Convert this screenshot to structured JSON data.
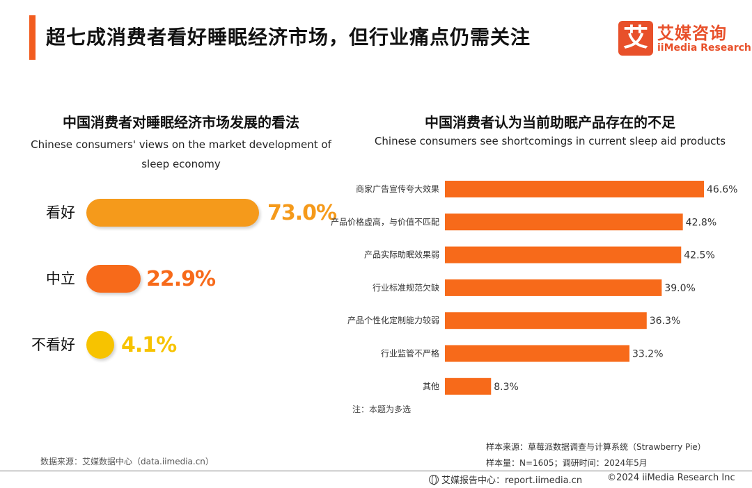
{
  "header": {
    "title": "超七成消费者看好睡眠经济市场，但行业痛点仍需关注",
    "logo_mark": "艾",
    "logo_cn": "艾媒咨询",
    "logo_en": "iiMedia Research",
    "accent_color": "#f25c1f"
  },
  "left_panel": {
    "title": "中国消费者对睡眠经济市场发展的看法",
    "subtitle_line1": "Chinese consumers' views on the market development of",
    "subtitle_line2": "sleep economy"
  },
  "right_panel": {
    "title": "中国消费者认为当前助眠产品存在的不足",
    "subtitle": "Chinese consumers see shortcomings in current sleep aid products",
    "note": "注：本题为多选"
  },
  "chart_data": [
    {
      "type": "bar",
      "orientation": "horizontal",
      "title": "中国消费者对睡眠经济市场发展的看法",
      "subtitle": "Chinese consumers' views on the market development of sleep economy",
      "categories": [
        "看好",
        "中立",
        "不看好"
      ],
      "values": [
        73.0,
        22.9,
        4.1
      ],
      "value_labels": [
        "73.0%",
        "22.9%",
        "4.1%"
      ],
      "colors": [
        "#f59a1b",
        "#f76a1a",
        "#f7c300"
      ],
      "unit": "%"
    },
    {
      "type": "bar",
      "orientation": "horizontal",
      "title": "中国消费者认为当前助眠产品存在的不足",
      "subtitle": "Chinese consumers see shortcomings in current sleep aid products",
      "categories": [
        "商家广告宣传夸大效果",
        "产品价格虚高，与价值不匹配",
        "产品实际助眠效果弱",
        "行业标准规范欠缺",
        "产品个性化定制能力较弱",
        "行业监管不严格",
        "其他"
      ],
      "values": [
        46.6,
        42.8,
        42.5,
        39.0,
        36.3,
        33.2,
        8.3
      ],
      "value_labels": [
        "46.6%",
        "42.8%",
        "42.5%",
        "39.0%",
        "36.3%",
        "33.2%",
        "8.3%"
      ],
      "color": "#f76a1a",
      "unit": "%"
    }
  ],
  "sources": {
    "left": "数据来源：艾媒数据中心（data.iimedia.cn）",
    "sample_source": "样本来源：草莓派数据调查与计算系统（Strawberry Pie）",
    "sample_size": "样本量：N=1605；调研时间：2024年5月"
  },
  "footer": {
    "report_center": "艾媒报告中心：report.iimedia.cn",
    "copyright": "©2024  iiMedia Research Inc"
  }
}
